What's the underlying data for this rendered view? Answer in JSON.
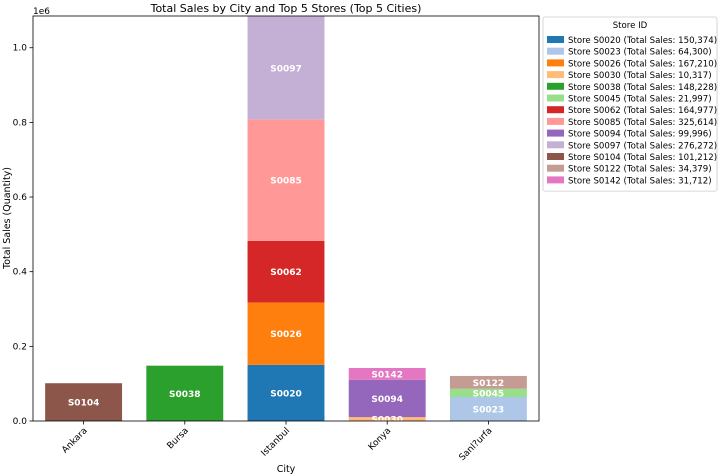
{
  "chart_data": {
    "type": "bar",
    "stacked": true,
    "title": "Total Sales by City and Top 5 Stores (Top 5 Cities)",
    "xlabel": "City",
    "ylabel": "Total Sales (Quantity)",
    "y_scale_label": "1e6",
    "ylim": [
      0,
      1.085
    ],
    "yticks": [
      "0.0",
      "0.2",
      "0.4",
      "0.6",
      "0.8",
      "1.0"
    ],
    "categories": [
      "Ankara",
      "Bursa",
      "Istanbul",
      "Konya",
      "Sanl?urfa"
    ],
    "legend_title": "Store ID",
    "legend_placement": "outside-right",
    "grid": false,
    "series": [
      {
        "store": "S0020",
        "city": "Istanbul",
        "value": 150374,
        "label": "Store S0020 (Total Sales: 150,374)",
        "color": "#1f77b4"
      },
      {
        "store": "S0023",
        "city": "Sanl?urfa",
        "value": 64300,
        "label": "Store S0023 (Total Sales: 64,300)",
        "color": "#aec7e8"
      },
      {
        "store": "S0026",
        "city": "Istanbul",
        "value": 167210,
        "label": "Store S0026 (Total Sales: 167,210)",
        "color": "#ff7f0e"
      },
      {
        "store": "S0030",
        "city": "Konya",
        "value": 10317,
        "label": "Store S0030 (Total Sales: 10,317)",
        "color": "#ffbb78"
      },
      {
        "store": "S0038",
        "city": "Bursa",
        "value": 148228,
        "label": "Store S0038 (Total Sales: 148,228)",
        "color": "#2ca02c"
      },
      {
        "store": "S0045",
        "city": "Sanl?urfa",
        "value": 21997,
        "label": "Store S0045 (Total Sales: 21,997)",
        "color": "#98df8a"
      },
      {
        "store": "S0062",
        "city": "Istanbul",
        "value": 164977,
        "label": "Store S0062 (Total Sales: 164,977)",
        "color": "#d62728"
      },
      {
        "store": "S0085",
        "city": "Istanbul",
        "value": 325614,
        "label": "Store S0085 (Total Sales: 325,614)",
        "color": "#ff9896"
      },
      {
        "store": "S0094",
        "city": "Konya",
        "value": 99996,
        "label": "Store S0094 (Total Sales: 99,996)",
        "color": "#9467bd"
      },
      {
        "store": "S0097",
        "city": "Istanbul",
        "value": 276272,
        "label": "Store S0097 (Total Sales: 276,272)",
        "color": "#c5b0d5"
      },
      {
        "store": "S0104",
        "city": "Ankara",
        "value": 101212,
        "label": "Store S0104 (Total Sales: 101,212)",
        "color": "#8c564b"
      },
      {
        "store": "S0122",
        "city": "Sanl?urfa",
        "value": 34379,
        "label": "Store S0122 (Total Sales: 34,379)",
        "color": "#c49c94"
      },
      {
        "store": "S0142",
        "city": "Konya",
        "value": 31712,
        "label": "Store S0142 (Total Sales: 31,712)",
        "color": "#e377c2"
      }
    ]
  }
}
